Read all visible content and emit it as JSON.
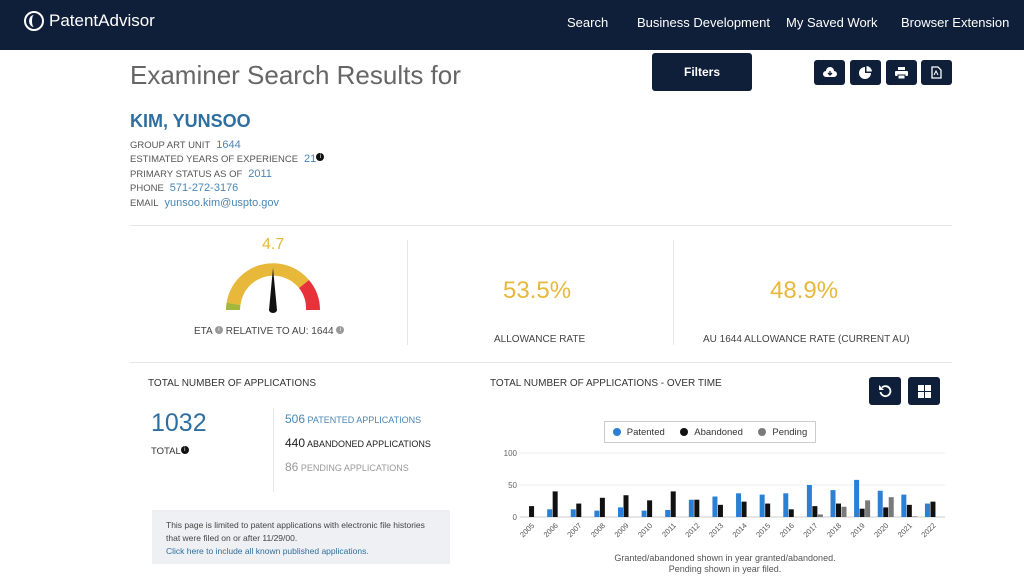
{
  "header": {
    "brand": "PatentAdvisor",
    "nav": [
      "Search",
      "Business Development",
      "My Saved Work",
      "Browser Extension"
    ]
  },
  "page": {
    "title": "Examiner Search Results for",
    "filters_label": "Filters",
    "icons": [
      "cloud-download-icon",
      "pie-chart-icon",
      "print-icon",
      "pdf-icon"
    ]
  },
  "examiner": {
    "name": "KIM, YUNSOO",
    "fields": [
      {
        "label": "GROUP ART UNIT",
        "value": "1644"
      },
      {
        "label": "ESTIMATED YEARS OF EXPERIENCE",
        "value": "21"
      },
      {
        "label": "PRIMARY STATUS AS OF",
        "value": "2011"
      },
      {
        "label": "PHONE",
        "value": "571-272-3176"
      },
      {
        "label": "EMAIL",
        "value": "yunsoo.kim@uspto.gov"
      }
    ]
  },
  "metrics": {
    "eta_value": "4.7",
    "eta_label": "ETA",
    "eta_relative": "RELATIVE TO AU: 1644",
    "allowance_rate": "53.5%",
    "allowance_label": "ALLOWANCE RATE",
    "au_rate": "48.9%",
    "au_label": "AU 1644 ALLOWANCE RATE (CURRENT AU)"
  },
  "applications": {
    "heading": "TOTAL NUMBER OF APPLICATIONS",
    "total": "1032",
    "total_label": "TOTAL",
    "patented_count": "506",
    "patented_label": "PATENTED APPLICATIONS",
    "abandoned_count": "440",
    "abandoned_label": "ABANDONED APPLICATIONS",
    "pending_count": "86",
    "pending_label": "PENDING APPLICATIONS",
    "note": "This page is limited to patent applications with electronic file histories that were filed on or after 11/29/00.",
    "note_link": "Click here to include all known published applications."
  },
  "colors": {
    "patented": "#2b7fd4",
    "abandoned": "#111111",
    "pending": "#7a7a7a",
    "navy": "#0f1f3a"
  },
  "chart_data": {
    "type": "bar",
    "title": "TOTAL NUMBER OF APPLICATIONS - OVER TIME",
    "ylim": [
      0,
      100
    ],
    "yticks": [
      "0",
      "50",
      "100"
    ],
    "categories": [
      "2005",
      "2006",
      "2007",
      "2008",
      "2009",
      "2010",
      "2011",
      "2012",
      "2013",
      "2014",
      "2015",
      "2016",
      "2017",
      "2018",
      "2019",
      "2020",
      "2021",
      "2022"
    ],
    "series": [
      {
        "name": "Patented",
        "values": [
          0,
          12,
          12,
          10,
          15,
          10,
          11,
          27,
          32,
          37,
          35,
          37,
          50,
          42,
          58,
          41,
          35,
          21
        ]
      },
      {
        "name": "Abandoned",
        "values": [
          17,
          40,
          21,
          30,
          34,
          26,
          40,
          27,
          19,
          24,
          21,
          12,
          17,
          21,
          13,
          15,
          19,
          24
        ]
      },
      {
        "name": "Pending",
        "values": [
          0,
          0,
          0,
          0,
          0,
          0,
          0,
          0,
          0,
          0,
          0,
          0,
          4,
          16,
          26,
          31,
          1,
          0
        ]
      }
    ],
    "caption": [
      "Granted/abandoned shown in year granted/abandoned.",
      "Pending shown in year filed."
    ]
  }
}
